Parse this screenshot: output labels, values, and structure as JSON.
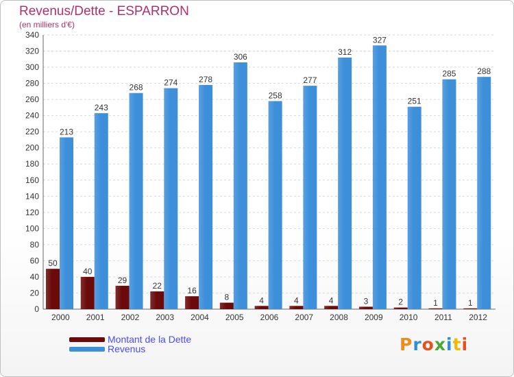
{
  "header": {
    "title": "Revenus/Dette - ESPARRON",
    "subtitle": "(en milliers d'€)"
  },
  "legend": [
    {
      "label": "Montant de la Dette",
      "color": "#6b0a0a"
    },
    {
      "label": "Revenus",
      "color": "#3d8fda"
    }
  ],
  "logo": {
    "text": "Proxiti",
    "letters": [
      {
        "ch": "P",
        "color": "#f08c1e"
      },
      {
        "ch": "r",
        "color": "#2e8fd6"
      },
      {
        "ch": "o",
        "color": "#e94e1b"
      },
      {
        "ch": "x",
        "color": "#4aa832"
      },
      {
        "ch": "i",
        "color": "#2e8fd6"
      },
      {
        "ch": "t",
        "color": "#f5b800"
      },
      {
        "ch": "i",
        "color": "#e94e1b"
      }
    ]
  },
  "chart_data": {
    "type": "bar",
    "categories": [
      "2000",
      "2001",
      "2002",
      "2003",
      "2004",
      "2005",
      "2006",
      "2007",
      "2008",
      "2009",
      "2010",
      "2011",
      "2012"
    ],
    "series": [
      {
        "name": "Montant de la Dette",
        "color": "#6b0a0a",
        "values": [
          50,
          40,
          29,
          22,
          16,
          8,
          4,
          4,
          4,
          3,
          2,
          1,
          1
        ]
      },
      {
        "name": "Revenus",
        "color": "#3d8fda",
        "values": [
          213,
          243,
          268,
          274,
          278,
          306,
          258,
          277,
          312,
          327,
          251,
          285,
          288
        ]
      }
    ],
    "ylim": [
      0,
      340
    ],
    "ytick_step": 20,
    "grid": true,
    "legend_position": "bottom-left"
  }
}
